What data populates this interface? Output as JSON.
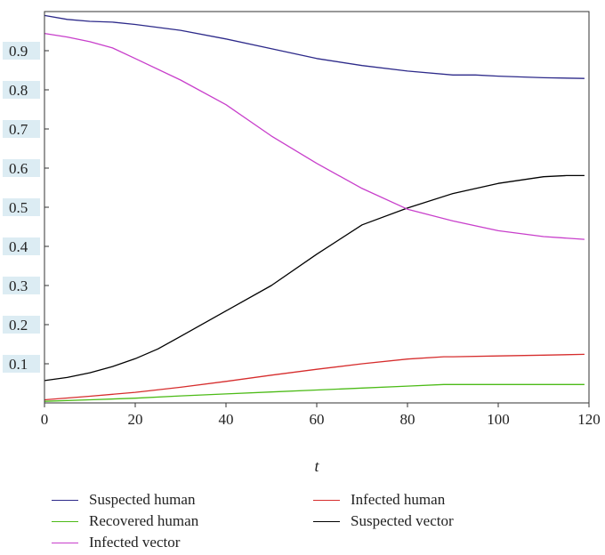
{
  "chart_data": {
    "type": "line",
    "title": "",
    "xlabel": "t",
    "ylabel": "",
    "xlim": [
      0,
      120
    ],
    "ylim": [
      0,
      1.0
    ],
    "x_ticks": [
      0,
      20,
      40,
      60,
      80,
      100,
      120
    ],
    "y_ticks": [
      0.1,
      0.2,
      0.3,
      0.4,
      0.5,
      0.6,
      0.7,
      0.8,
      0.9
    ],
    "grid": false,
    "legend_position": "bottom",
    "series": [
      {
        "name": "Suspected human",
        "color": "#2d2a8a",
        "x": [
          0,
          5,
          10,
          15,
          20,
          30,
          40,
          50,
          60,
          70,
          80,
          90,
          95,
          100,
          110,
          119
        ],
        "y": [
          0.99,
          0.98,
          0.975,
          0.973,
          0.967,
          0.952,
          0.93,
          0.905,
          0.88,
          0.862,
          0.848,
          0.838,
          0.838,
          0.835,
          0.831,
          0.829
        ]
      },
      {
        "name": "Infected human",
        "color": "#d62d2d",
        "x": [
          0,
          10,
          20,
          30,
          40,
          50,
          60,
          70,
          80,
          88,
          90,
          100,
          110,
          119
        ],
        "y": [
          0.008,
          0.017,
          0.027,
          0.04,
          0.055,
          0.071,
          0.086,
          0.1,
          0.112,
          0.118,
          0.118,
          0.12,
          0.122,
          0.124
        ]
      },
      {
        "name": "Recovered human",
        "color": "#4cbb17",
        "x": [
          0,
          10,
          20,
          30,
          40,
          50,
          60,
          70,
          80,
          88,
          90,
          100,
          110,
          119
        ],
        "y": [
          0.004,
          0.008,
          0.012,
          0.018,
          0.023,
          0.028,
          0.033,
          0.038,
          0.043,
          0.047,
          0.047,
          0.047,
          0.047,
          0.047
        ]
      },
      {
        "name": "Suspected vector",
        "color": "#000000",
        "x": [
          0,
          5,
          10,
          15,
          20,
          25,
          30,
          40,
          50,
          60,
          70,
          80,
          90,
          100,
          110,
          115,
          119
        ],
        "y": [
          0.057,
          0.065,
          0.077,
          0.093,
          0.113,
          0.138,
          0.17,
          0.235,
          0.3,
          0.38,
          0.455,
          0.498,
          0.535,
          0.561,
          0.578,
          0.581,
          0.581
        ]
      },
      {
        "name": "Infected vector",
        "color": "#c83fcb",
        "x": [
          0,
          5,
          10,
          15,
          20,
          30,
          40,
          50,
          60,
          70,
          80,
          90,
          100,
          110,
          119
        ],
        "y": [
          0.944,
          0.935,
          0.923,
          0.907,
          0.88,
          0.825,
          0.762,
          0.682,
          0.612,
          0.548,
          0.495,
          0.465,
          0.44,
          0.425,
          0.418
        ]
      }
    ]
  },
  "legend": {
    "items": [
      {
        "label": "Suspected human",
        "color": "#2d2a8a"
      },
      {
        "label": "Infected human",
        "color": "#d62d2d"
      },
      {
        "label": "Recovered human",
        "color": "#4cbb17"
      },
      {
        "label": "Suspected vector",
        "color": "#000000"
      },
      {
        "label": "Infected vector",
        "color": "#c83fcb"
      }
    ]
  }
}
